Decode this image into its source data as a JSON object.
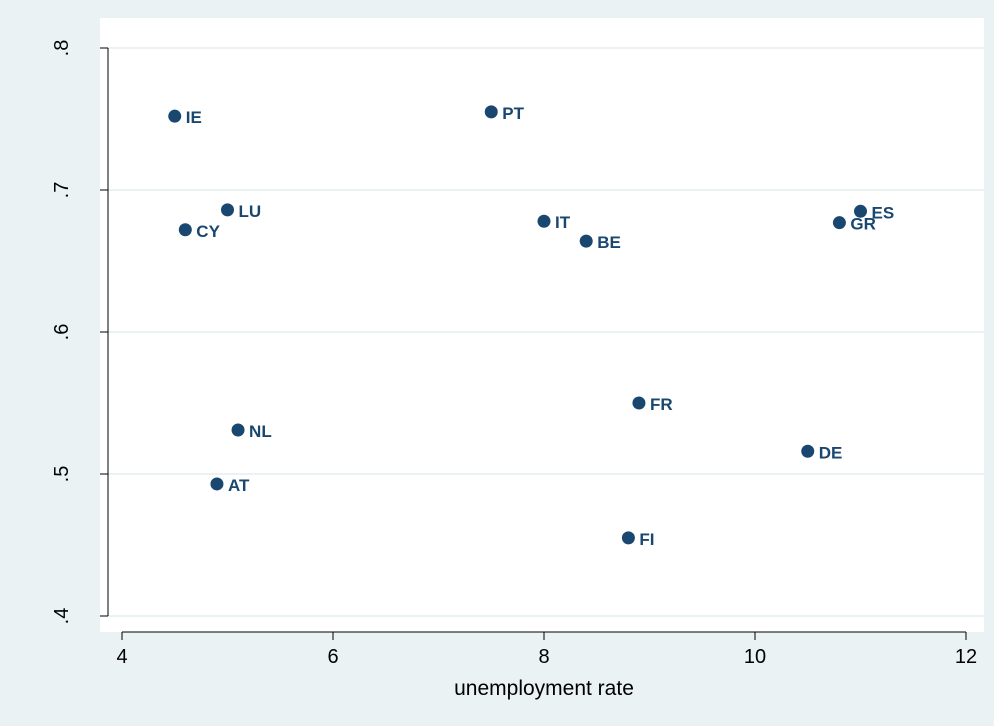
{
  "chart_data": {
    "type": "scatter",
    "title": "",
    "xlabel": "unemployment rate",
    "ylabel": "",
    "xlim": [
      3.9,
      12.2
    ],
    "ylim": [
      0.389,
      0.81
    ],
    "xticks": [
      4,
      6,
      8,
      10,
      12
    ],
    "xtick_labels": [
      "4",
      "6",
      "8",
      "10",
      "12"
    ],
    "yticks": [
      0.4,
      0.5,
      0.6,
      0.7,
      0.8
    ],
    "ytick_labels": [
      ".4",
      ".5",
      ".6",
      ".7",
      ".8"
    ],
    "grid": true,
    "legend": "none",
    "points": [
      {
        "label": "IE",
        "x": 4.5,
        "y": 0.752
      },
      {
        "label": "PT",
        "x": 7.5,
        "y": 0.755
      },
      {
        "label": "LU",
        "x": 5.0,
        "y": 0.686
      },
      {
        "label": "CY",
        "x": 4.6,
        "y": 0.672
      },
      {
        "label": "IT",
        "x": 8.0,
        "y": 0.678
      },
      {
        "label": "BE",
        "x": 8.4,
        "y": 0.664
      },
      {
        "label": "ES",
        "x": 11.0,
        "y": 0.685
      },
      {
        "label": "GR",
        "x": 10.8,
        "y": 0.677
      },
      {
        "label": "FR",
        "x": 8.9,
        "y": 0.55
      },
      {
        "label": "NL",
        "x": 5.1,
        "y": 0.531
      },
      {
        "label": "DE",
        "x": 10.5,
        "y": 0.516
      },
      {
        "label": "AT",
        "x": 4.9,
        "y": 0.493
      },
      {
        "label": "FI",
        "x": 8.8,
        "y": 0.455
      }
    ]
  },
  "colors": {
    "background": "#eaf2f3",
    "plot_area": "#ffffff",
    "gridline": "#eaf2f3",
    "marker": "#1a476f",
    "label": "#1a476f",
    "axis": "#000000"
  }
}
